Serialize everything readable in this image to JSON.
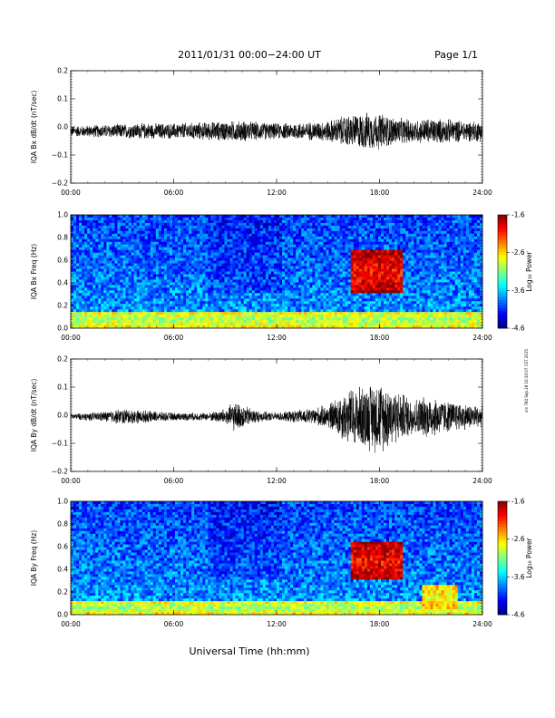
{
  "header": {
    "title": "2011/01/31  00:00−24:00 UT",
    "page": "Page 1/1"
  },
  "footer": {
    "xlabel": "Universal Time (hh:mm)",
    "side_note": "cm 784 Sep 28 10:30:07 CST 2015"
  },
  "chart_data": [
    {
      "type": "line",
      "ylabel": "IQA Bx dB/dt (nT/sec)",
      "x_ticks": [
        "00:00",
        "06:00",
        "12:00",
        "18:00",
        "24:00"
      ],
      "y_ticks": [
        "0.2",
        "0.1",
        "0.0",
        "−0.1",
        "−0.2"
      ],
      "xlim": [
        0,
        24
      ],
      "ylim": [
        -0.2,
        0.2
      ],
      "series": [
        {
          "x_hours": [
            0,
            2,
            4,
            6,
            8,
            10,
            12,
            14,
            15,
            16,
            17,
            18,
            19,
            20,
            21,
            22,
            23,
            24
          ],
          "envelope_half_width": [
            0.02,
            0.025,
            0.03,
            0.03,
            0.035,
            0.04,
            0.03,
            0.035,
            0.04,
            0.06,
            0.07,
            0.07,
            0.05,
            0.045,
            0.05,
            0.045,
            0.04,
            0.04
          ],
          "baseline": -0.015
        }
      ]
    },
    {
      "type": "heatmap",
      "ylabel": "IQA Bx Freq (Hz)",
      "x_ticks": [
        "00:00",
        "06:00",
        "12:00",
        "18:00",
        "24:00"
      ],
      "y_ticks": [
        "1.0",
        "0.8",
        "0.6",
        "0.4",
        "0.2",
        "0.0"
      ],
      "xlim": [
        0,
        24
      ],
      "ylim": [
        0,
        1.0
      ],
      "colorbar": {
        "label": "Log₁₀ Power",
        "ticks": [
          "-1.6",
          "-2.6",
          "-3.6",
          "-4.6"
        ],
        "range": [
          -4.6,
          -1.6
        ]
      },
      "features": [
        {
          "t0": 16.3,
          "t1": 19.3,
          "f0": 0.3,
          "f1": 0.7,
          "level": -2.0
        },
        {
          "t0": 0,
          "t1": 24,
          "f0": 0,
          "f1": 0.15,
          "level": -3.0
        }
      ]
    },
    {
      "type": "line",
      "ylabel": "IQA By dB/dt (nT/sec)",
      "x_ticks": [
        "00:00",
        "06:00",
        "12:00",
        "18:00",
        "24:00"
      ],
      "y_ticks": [
        "0.2",
        "0.1",
        "0.0",
        "−0.1",
        "−0.2"
      ],
      "xlim": [
        0,
        24
      ],
      "ylim": [
        -0.2,
        0.2
      ],
      "series": [
        {
          "x_hours": [
            0,
            1,
            2,
            3,
            4,
            5,
            6,
            8,
            9,
            9.5,
            10,
            11,
            12,
            14,
            15,
            16,
            17,
            18,
            19,
            20,
            21,
            22,
            23,
            24
          ],
          "envelope_half_width": [
            0.01,
            0.015,
            0.02,
            0.03,
            0.025,
            0.02,
            0.015,
            0.015,
            0.03,
            0.055,
            0.045,
            0.02,
            0.015,
            0.03,
            0.045,
            0.1,
            0.12,
            0.14,
            0.1,
            0.07,
            0.08,
            0.06,
            0.05,
            0.04
          ],
          "baseline": -0.005
        }
      ]
    },
    {
      "type": "heatmap",
      "ylabel": "IQA By Freq (Hz)",
      "x_ticks": [
        "00:00",
        "06:00",
        "12:00",
        "18:00",
        "24:00"
      ],
      "y_ticks": [
        "1.0",
        "0.8",
        "0.6",
        "0.4",
        "0.2",
        "0.0"
      ],
      "xlim": [
        0,
        24
      ],
      "ylim": [
        0,
        1.0
      ],
      "colorbar": {
        "label": "Log₁₀ Power",
        "ticks": [
          "-1.6",
          "-2.6",
          "-3.6",
          "-4.6"
        ],
        "range": [
          -4.6,
          -1.6
        ]
      },
      "features": [
        {
          "t0": 16.3,
          "t1": 19.3,
          "f0": 0.3,
          "f1": 0.65,
          "level": -2.0
        },
        {
          "t0": 20.5,
          "t1": 22.5,
          "f0": 0.05,
          "f1": 0.25,
          "level": -2.8
        },
        {
          "t0": 0,
          "t1": 24,
          "f0": 0,
          "f1": 0.12,
          "level": -3.0
        }
      ]
    }
  ]
}
